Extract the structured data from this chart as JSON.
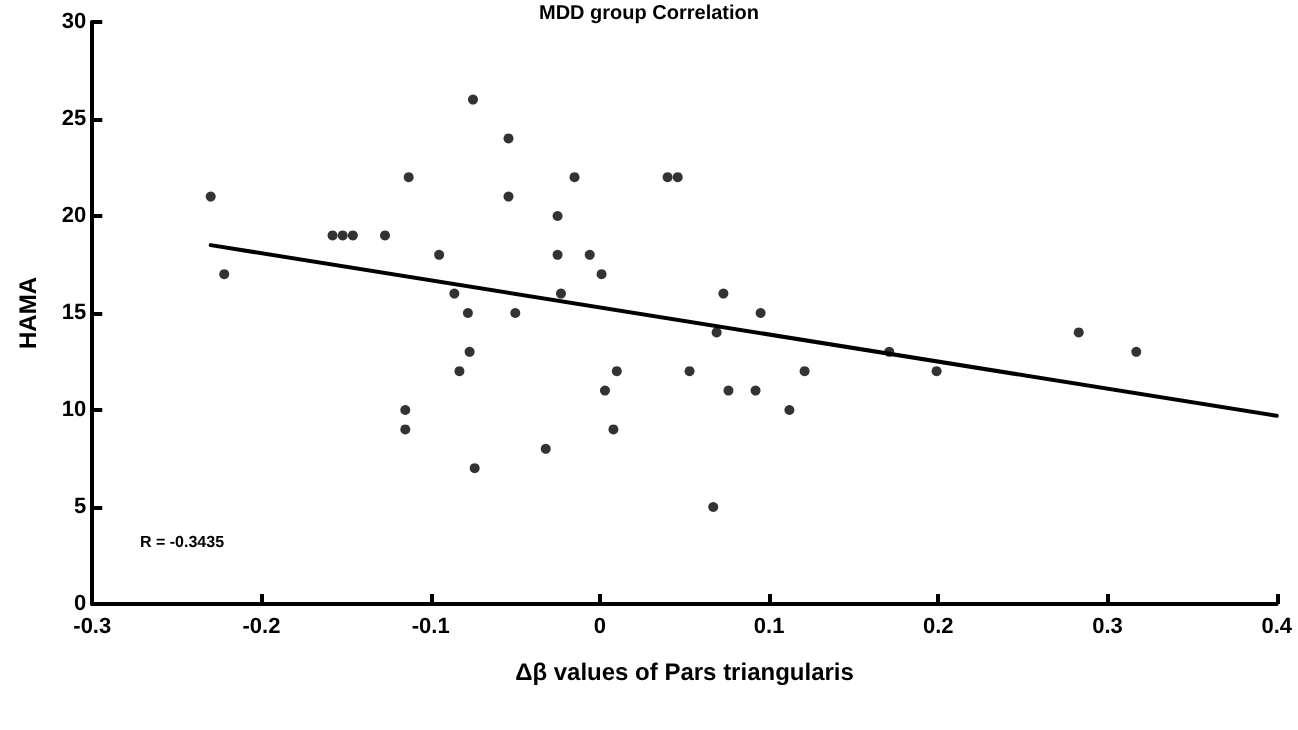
{
  "chart_data": {
    "type": "scatter",
    "title": "MDD group Correlation",
    "xlabel": "Δβ values of Pars triangularis",
    "ylabel": "HAMA",
    "annotations": [
      "R = -0.3435"
    ],
    "xlim": [
      -0.3,
      0.4
    ],
    "xticks": [
      -0.3,
      -0.2,
      -0.1,
      0,
      0.1,
      0.2,
      0.3,
      0.4
    ],
    "ylim": [
      0,
      30
    ],
    "yticks": [
      0,
      5,
      10,
      15,
      20,
      25,
      30
    ],
    "grid": false,
    "marker": "circle",
    "series": [
      {
        "color": "#000000",
        "x": [
          -0.23,
          -0.222,
          -0.158,
          -0.152,
          -0.146,
          -0.127,
          -0.113,
          -0.115,
          -0.115,
          -0.095,
          -0.086,
          -0.083,
          -0.078,
          -0.077,
          -0.075,
          -0.074,
          -0.054,
          -0.054,
          -0.05,
          -0.032,
          -0.025,
          -0.025,
          -0.023,
          -0.015,
          -0.006,
          0.001,
          0.003,
          0.008,
          0.01,
          0.04,
          0.046,
          0.067,
          0.073,
          0.069,
          0.053,
          0.076,
          0.092,
          0.095,
          0.112,
          0.121,
          0.171,
          0.199,
          0.283,
          0.317
        ],
        "values": [
          21,
          17,
          19,
          19,
          19,
          19,
          22,
          10,
          9,
          18,
          16,
          12,
          15,
          13,
          26,
          7,
          24,
          21,
          15,
          8,
          20,
          18,
          16,
          22,
          18,
          17,
          11,
          9,
          12,
          22,
          22,
          5,
          16,
          14,
          12,
          11,
          11,
          15,
          10,
          12,
          13,
          12,
          14,
          13
        ]
      },
      {
        "type": "line",
        "color": "#000000",
        "marker": "none",
        "line_style": "solid",
        "x": [
          -0.23,
          0.4
        ],
        "values": [
          18.5,
          9.7
        ]
      }
    ]
  }
}
